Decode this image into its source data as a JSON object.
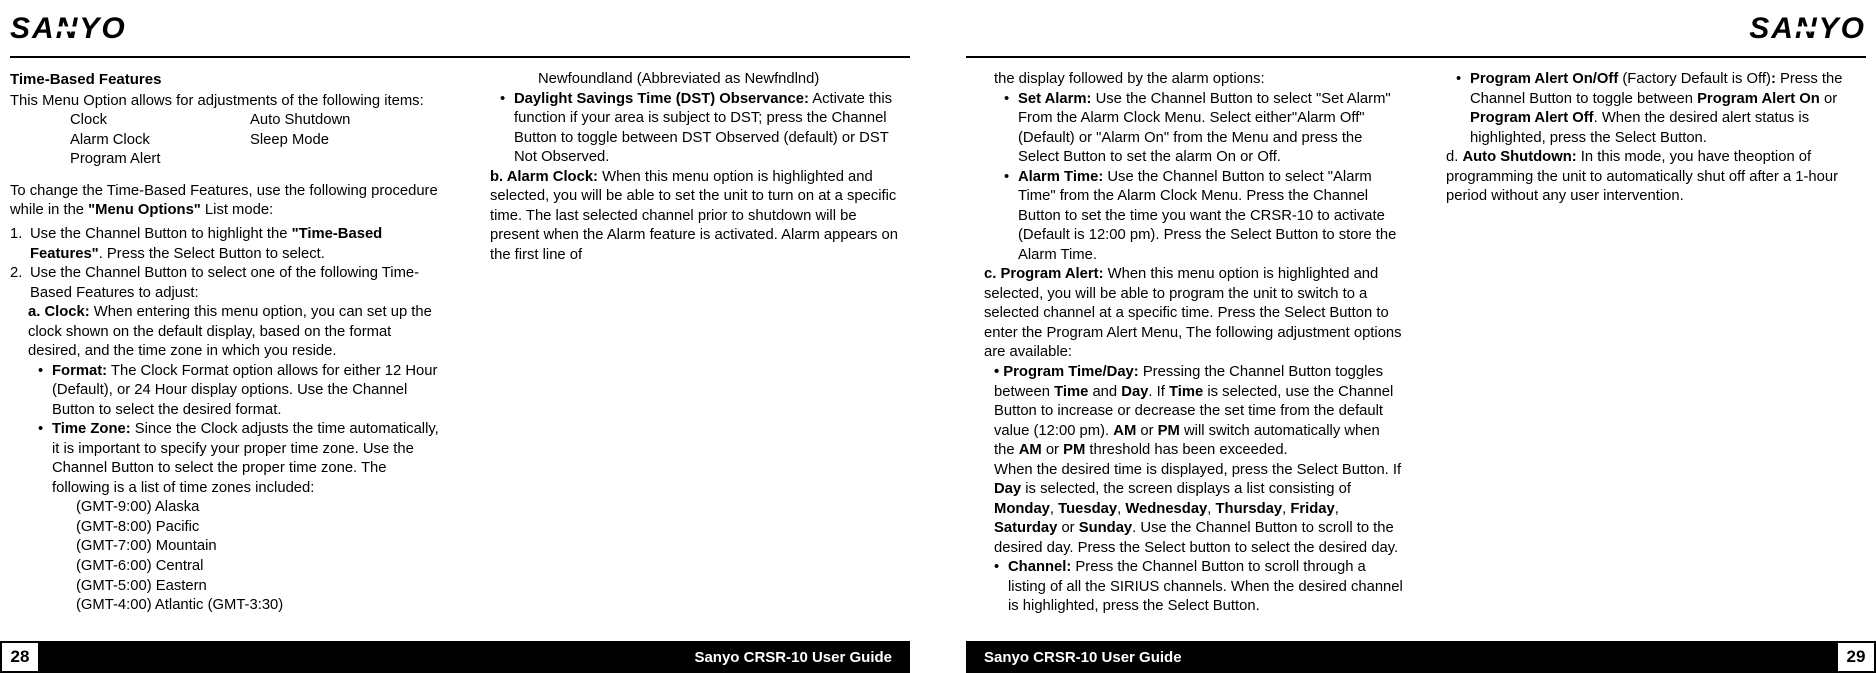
{
  "brand": "SANYO",
  "footer_guide": "Sanyo CRSR-10 User Guide",
  "page_left_num": "28",
  "page_right_num": "29",
  "left": {
    "title": "Time-Based Features",
    "intro": "This Menu Option allows for adjustments of the following items:",
    "items_c1": [
      "Clock",
      "Alarm Clock",
      "Program Alert"
    ],
    "items_c2": [
      "Auto Shutdown",
      "Sleep Mode",
      ""
    ],
    "proc_a": "To change the Time-Based Features, use the following procedure while in the ",
    "proc_b": "\"Menu Options\"",
    "proc_c": " List mode:",
    "step1_a": "Use the Channel Button to highlight the ",
    "step1_b": "\"Time-Based Features\"",
    "step1_c": ". Press the Select Button to select.",
    "step2": "Use the Channel Button to select one of the following Time-Based Features to adjust:",
    "a_clock_label": "a. Clock:",
    "a_clock_text": " When entering this menu option, you can set up the clock shown on the default display, based on the format desired, and the time zone in which you reside.",
    "format_label": "Format:",
    "format_text": " The Clock Format option allows for either 12 Hour (Default), or 24 Hour display options. Use the Channel Button to select the desired format.",
    "tz_label": "Time Zone:",
    "tz_text": " Since the Clock adjusts the time automatically, it is important to specify your proper time zone. Use the Channel Button to select the proper time zone. The following is a list of time zones included:",
    "tz_list": [
      "(GMT-9:00) Alaska",
      "(GMT-8:00) Pacific",
      "(GMT-7:00) Mountain",
      "(GMT-6:00) Central",
      "(GMT-5:00) Eastern",
      "(GMT-4:00) Atlantic (GMT-3:30)",
      "Newfoundland (Abbreviated as Newfndlnd)"
    ],
    "dst_label": "Daylight Savings Time (DST) Observance:",
    "dst_text": " Activate this function if your area is subject to DST; press the Channel Button  to toggle between DST Observed (default) or DST Not Observed.",
    "b_label": "b. Alarm Clock:",
    "b_text": " When this menu option is highlighted and selected, you will be able to set the unit to turn on at a specific time. The last selected channel prior to shutdown will be present when the Alarm feature is activated. Alarm appears on the first line of"
  },
  "right": {
    "cont": "the display followed by the alarm options:",
    "setalarm_label": "Set Alarm:",
    "setalarm_text": " Use the Channel Button to select \"Set Alarm\" From the Alarm Clock Menu.  Select either\"Alarm Off\" (Default) or \"Alarm On\" from the Menu and press the Select Button to set the alarm On or Off.",
    "atime_label": "Alarm Time:",
    "atime_text": " Use the Channel Button to select \"Alarm Time\" from the  Alarm Clock Menu. Press the Channel Button to set the time you want the CRSR-10 to activate (Default is 12:00 pm). Press the Select Button to store the Alarm Time.",
    "c_label": "c. Program Alert:",
    "c_text": " When this menu option is highlighted and selected, you will be able to program the unit to switch to a selected channel at a specific time. Press the Select Button to enter the Program Alert Menu, The following  adjustment options are available:",
    "ptd_label": "• Program Time/Day:",
    "ptd_1": " Pressing the Channel Button toggles between ",
    "ptd_time": "Time",
    "ptd_and": " and ",
    "ptd_day": "Day",
    "ptd_2": ". If ",
    "ptd_3": " is selected, use the Channel Button to increase or decrease the set time from the default value (12:00 pm). ",
    "ptd_am": "AM",
    "ptd_or": " or ",
    "ptd_pm": "PM",
    "ptd_4": " will switch automatically when the ",
    "ptd_5": " threshold has been exceeded.",
    "col2_a": "When the desired time is displayed, press the Select Button. If ",
    "col2_b": " is selected, the screen displays a list consisting of ",
    "days": [
      "Monday",
      "Tuesday",
      "Wednesday",
      "Thursday",
      "Friday",
      "Saturday",
      "Sunday"
    ],
    "col2_c": ". Use the Channel Button  to scroll to the desired day. Press the Select button to select the desired day.",
    "channel_label": "Channel:",
    "channel_text": " Press the Channel Button to scroll through a listing of all the SIRIUS channels. When the desired channel is highlighted, press the Select Button.",
    "paoo_label": "Program Alert On/Off",
    "paoo_1": " (Factory Default is Off)",
    "paoo_colon": ":",
    "paoo_2": " Press the Channel Button to toggle between ",
    "paoo_on": "Program Alert On",
    "paoo_or": " or ",
    "paoo_off": "Program Alert Off",
    "paoo_3": ". When the desired alert status is highlighted, press the Select Button.",
    "d_label": "d. ",
    "d_bold": "Auto Shutdown:",
    "d_text": " In this mode, you have theoption of programming the unit to automatically shut off after a 1-hour period without any user intervention."
  }
}
